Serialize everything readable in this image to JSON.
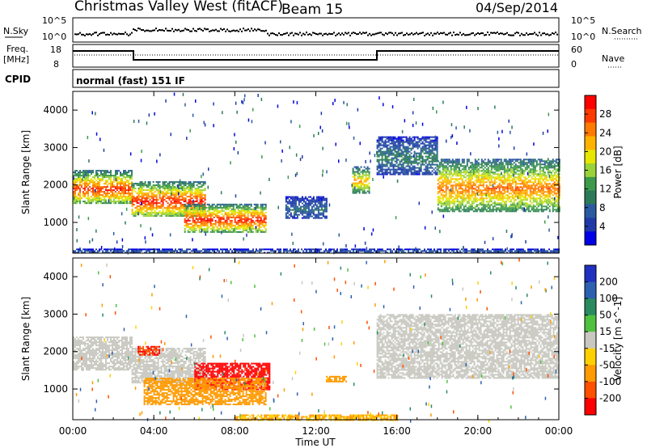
{
  "header": {
    "title": "Christmas Valley West (fitACF)",
    "beam": "Beam 15",
    "date": "04/Sep/2014"
  },
  "status_panels": {
    "nsky_label": "N.Sky",
    "nsky_ticks": [
      "10^5",
      "10^0"
    ],
    "nsearch_label": "N.Search",
    "freq_label_1": "Freq.",
    "freq_label_2": "[MHz]",
    "freq_ticks": [
      "18",
      "8"
    ],
    "nave_label": "Nave",
    "nave_ticks": [
      "60",
      "0"
    ],
    "cpid_label": "CPID",
    "cpid_value": "normal (fast) 151 IF"
  },
  "axes": {
    "xlabel": "Time UT",
    "xticks": [
      "00:00",
      "04:00",
      "08:00",
      "12:00",
      "16:00",
      "20:00",
      "00:00"
    ],
    "ylabel": "Slant Range [km]",
    "yticks": [
      "1000",
      "2000",
      "3000",
      "4000"
    ]
  },
  "power_colorbar": {
    "label": "Power [dB]",
    "ticks": [
      "28",
      "24",
      "20",
      "16",
      "12",
      "8",
      "4"
    ],
    "colors": [
      "#ff0000",
      "#ff3a00",
      "#ff7a00",
      "#ffb300",
      "#e6e600",
      "#9ad23a",
      "#3c9a4a",
      "#2c7a5a",
      "#2a5aa0",
      "#1f3aa8",
      "#0000e6"
    ]
  },
  "velocity_colorbar": {
    "label": "Velocity [m s^-1]",
    "ticks": [
      "200",
      "100",
      "50",
      "15",
      "-15",
      "-50",
      "-100",
      "-200"
    ],
    "colors": [
      "#2030c0",
      "#2c60b0",
      "#2a8a60",
      "#50c040",
      "#c8c8c0",
      "#ffd000",
      "#ff9a00",
      "#ff5000",
      "#ff0000"
    ]
  },
  "chart_data": [
    {
      "type": "heatmap",
      "name": "power",
      "xlabel": "Time UT",
      "ylabel": "Slant Range [km]",
      "xlim": [
        0,
        24
      ],
      "ylim": [
        180,
        4500
      ],
      "colorbar_range": [
        0,
        30
      ],
      "regions": [
        {
          "t0": 0.0,
          "t1": 2.9,
          "r0": 1500,
          "r1": 2400,
          "peak": 27
        },
        {
          "t0": 2.9,
          "t1": 6.5,
          "r0": 1150,
          "r1": 2100,
          "peak": 28
        },
        {
          "t0": 5.5,
          "t1": 9.5,
          "r0": 750,
          "r1": 1500,
          "peak": 28
        },
        {
          "t0": 10.5,
          "t1": 12.5,
          "r0": 1100,
          "r1": 1700,
          "peak": 8
        },
        {
          "t0": 13.8,
          "t1": 14.6,
          "r0": 1800,
          "r1": 2500,
          "peak": 22
        },
        {
          "t0": 15.0,
          "t1": 18.0,
          "r0": 2300,
          "r1": 3300,
          "peak": 10
        },
        {
          "t0": 18.0,
          "t1": 24.0,
          "r0": 1300,
          "r1": 2700,
          "peak": 24
        },
        {
          "t0": 0.0,
          "t1": 24.0,
          "r0": 180,
          "r1": 300,
          "peak": 8
        }
      ]
    },
    {
      "type": "heatmap",
      "name": "velocity",
      "xlabel": "Time UT",
      "ylabel": "Slant Range [km]",
      "xlim": [
        0,
        24
      ],
      "ylim": [
        180,
        4500
      ],
      "colorbar_range": [
        -200,
        200
      ],
      "regions": [
        {
          "t0": 0.0,
          "t1": 2.9,
          "r0": 1500,
          "r1": 2400,
          "v": 0
        },
        {
          "t0": 2.9,
          "t1": 6.5,
          "r0": 1150,
          "r1": 2100,
          "v": 0
        },
        {
          "t0": 3.2,
          "t1": 4.3,
          "r0": 1900,
          "r1": 2150,
          "v": -200
        },
        {
          "t0": 6.0,
          "t1": 9.7,
          "r0": 1000,
          "r1": 1700,
          "v": -220
        },
        {
          "t0": 3.5,
          "t1": 9.5,
          "r0": 600,
          "r1": 1300,
          "v": -60
        },
        {
          "t0": 12.5,
          "t1": 13.5,
          "r0": 1200,
          "r1": 1350,
          "v": -60
        },
        {
          "t0": 15.0,
          "t1": 24.0,
          "r0": 1300,
          "r1": 3000,
          "v": 0
        },
        {
          "t0": 8.0,
          "t1": 16.0,
          "r0": 180,
          "r1": 320,
          "v": -50
        }
      ]
    }
  ]
}
